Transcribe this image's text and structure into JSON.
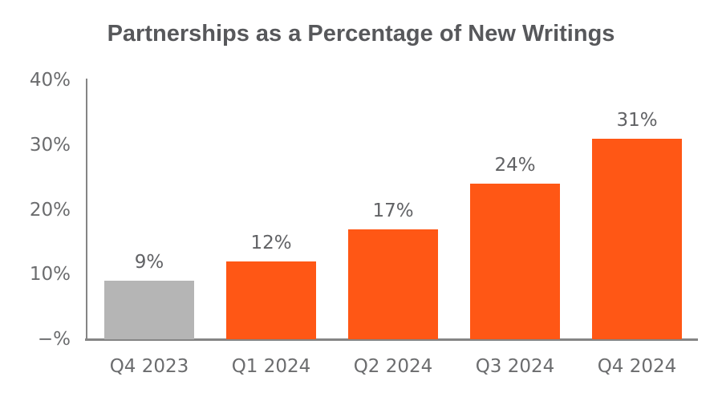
{
  "chart_data": {
    "type": "bar",
    "title": "Partnerships as a Percentage of New Writings",
    "categories": [
      "Q4 2023",
      "Q1 2024",
      "Q2 2024",
      "Q3 2024",
      "Q4 2024"
    ],
    "values": [
      9,
      12,
      17,
      24,
      31
    ],
    "value_labels": [
      "9%",
      "12%",
      "17%",
      "24%",
      "31%"
    ],
    "bar_colors": [
      "#b5b5b5",
      "#ff5715",
      "#ff5715",
      "#ff5715",
      "#ff5715"
    ],
    "xlabel": "",
    "ylabel": "",
    "ylim": [
      0,
      40
    ],
    "yticks": [
      {
        "value": 40,
        "label": "40%"
      },
      {
        "value": 30,
        "label": "30%"
      },
      {
        "value": 20,
        "label": "20%"
      },
      {
        "value": 10,
        "label": "10%"
      },
      {
        "value": 0,
        "label": "−%"
      }
    ],
    "grid": false,
    "legend": false,
    "colors": {
      "highlight_bar": "#ff5715",
      "muted_bar": "#b5b5b5",
      "axis_line": "#858585",
      "tick_text": "#6b6c6e",
      "value_text": "#616265",
      "title_text": "#57585b"
    }
  }
}
